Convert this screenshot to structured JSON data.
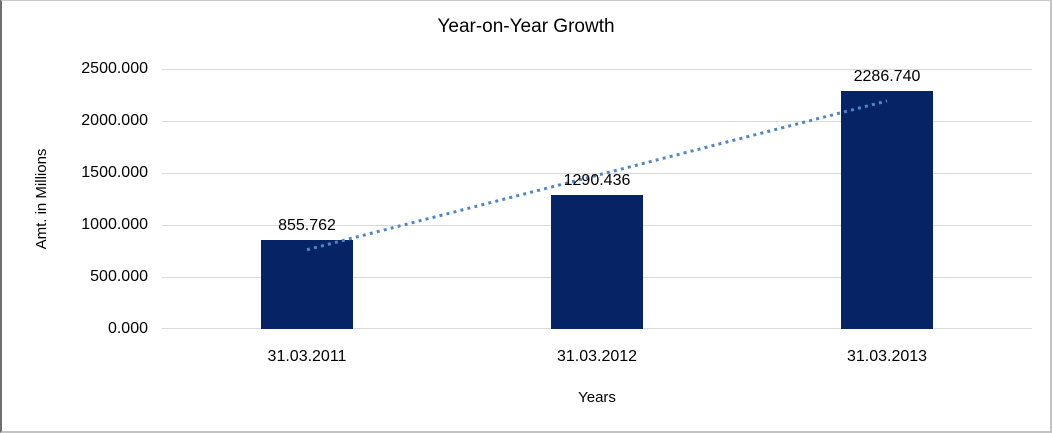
{
  "chart_data": {
    "type": "bar",
    "title": "Year-on-Year Growth",
    "xlabel": "Years",
    "ylabel": "Amt. in Millions",
    "categories": [
      "31.03.2011",
      "31.03.2012",
      "31.03.2013"
    ],
    "values": [
      855.762,
      1290.436,
      2286.74
    ],
    "value_labels": [
      "855.762",
      "1290.436",
      "2286.740"
    ],
    "ylim": [
      0,
      2500
    ],
    "yticks": [
      0,
      500,
      1000,
      1500,
      2000,
      2500
    ],
    "ytick_labels": [
      "0.000",
      "500.000",
      "1000.000",
      "1500.000",
      "2000.000",
      "2500.000"
    ],
    "grid": true,
    "legend": false,
    "trendline": {
      "type": "linear",
      "style": "dotted"
    },
    "colors": {
      "bar": "#062366",
      "trendline": "#4e86c6",
      "gridline": "#d9d9d9",
      "text": "#000000",
      "background": "#ffffff"
    }
  }
}
